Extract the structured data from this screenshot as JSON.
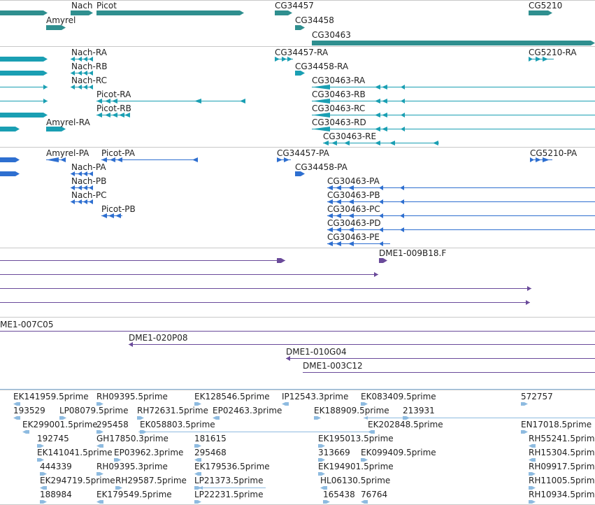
{
  "colors": {
    "gene": "#2f8f8f",
    "mrna": "#1a9fb3",
    "protein": "#2e6fd0",
    "bac": "#6a4a9a",
    "est": "#8ebbe0",
    "separator": "#c8c8c8"
  },
  "tracks": {
    "genes": {
      "features": [
        {
          "label": "Nach",
          "strand": "fwd"
        },
        {
          "label": "Picot",
          "strand": "fwd"
        },
        {
          "label": "CG34457",
          "strand": "fwd"
        },
        {
          "label": "CG5210",
          "strand": "fwd"
        },
        {
          "label": "Amyrel",
          "strand": "fwd"
        },
        {
          "label": "CG34458",
          "strand": "fwd"
        },
        {
          "label": "CG30463",
          "strand": "fwd"
        },
        {
          "label": "",
          "strand": "fwd"
        }
      ]
    },
    "transcripts": {
      "features": [
        {
          "label": "Nach-RA"
        },
        {
          "label": "CG34457-RA"
        },
        {
          "label": "CG5210-RA"
        },
        {
          "label": "Nach-RB"
        },
        {
          "label": "CG34458-RA"
        },
        {
          "label": "Nach-RC"
        },
        {
          "label": "CG30463-RA"
        },
        {
          "label": "Picot-RA"
        },
        {
          "label": "CG30463-RB"
        },
        {
          "label": "Picot-RB"
        },
        {
          "label": "CG30463-RC"
        },
        {
          "label": "Amyrel-RA"
        },
        {
          "label": "CG30463-RD"
        },
        {
          "label": "CG30463-RE"
        }
      ]
    },
    "proteins": {
      "features": [
        {
          "label": "Amyrel-PA"
        },
        {
          "label": "Picot-PA"
        },
        {
          "label": "CG34457-PA"
        },
        {
          "label": "CG5210-PA"
        },
        {
          "label": "Nach-PA"
        },
        {
          "label": "CG34458-PA"
        },
        {
          "label": "Nach-PB"
        },
        {
          "label": "CG30463-PA"
        },
        {
          "label": "Nach-PC"
        },
        {
          "label": "CG30463-PB"
        },
        {
          "label": "Picot-PB"
        },
        {
          "label": "CG30463-PC"
        },
        {
          "label": "CG30463-PD"
        },
        {
          "label": "CG30463-PE"
        }
      ]
    },
    "bac_clones": {
      "features": [
        {
          "label": "DME1-009B18.F"
        },
        {
          "label": "ME1-007C05"
        },
        {
          "label": "DME1-020P08"
        },
        {
          "label": "DME1-010G04"
        },
        {
          "label": "DME1-003C12"
        }
      ]
    },
    "est": {
      "features": [
        "EK141959.5prime",
        "RH09395.5prime",
        "EK128546.5prime",
        "IP12543.3prime",
        "EK083409.5prime",
        "572757",
        "193529",
        "LP08079.5prime",
        "RH72631.5prime",
        "EP02463.3prime",
        "EK188909.5prime",
        "213931",
        "EK299001.5prime",
        "295458",
        "EK058803.5prime",
        "EK202848.5prime",
        "EN17018.5prime",
        "192745",
        "GH17850.3prime",
        "181615",
        "EK195013.5prime",
        "RH55241.5prime",
        "EK141041.5prime",
        "EP03962.3prime",
        "295468",
        "313669",
        "EK099409.5prime",
        "RH15304.5prime",
        "444339",
        "RH09395.3prime",
        "EK179536.5prime",
        "EK194901.5prime",
        "RH09917.5prime",
        "EK294719.5prime",
        "RH29587.5prime",
        "LP21373.5prime",
        "HL06130.5prime",
        "RH11005.5prime",
        "188984",
        "EK179549.5prime",
        "LP22231.5prime",
        "165438",
        "76764",
        "RH10934.5prime"
      ]
    }
  }
}
